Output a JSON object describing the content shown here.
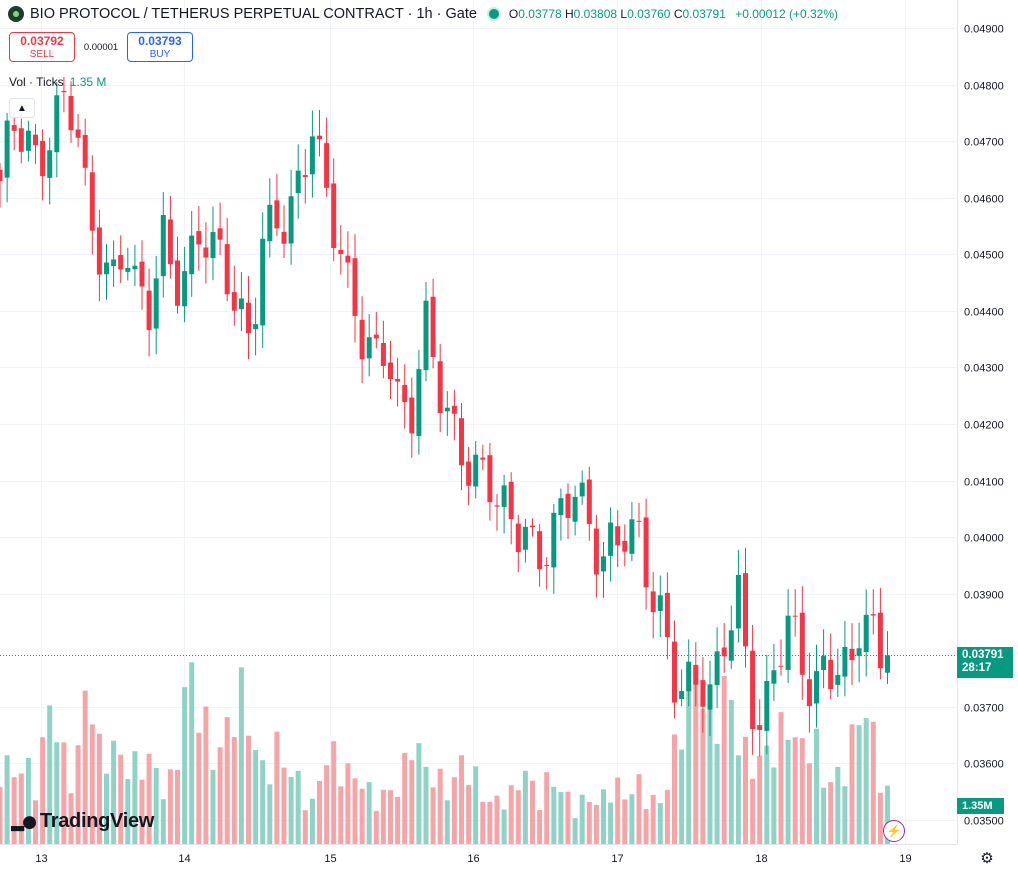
{
  "header": {
    "title": "BIO PROTOCOL / TETHERUS PERPETUAL CONTRACT · 1h · Gate",
    "ohlc": {
      "o_label": "O",
      "o": "0.03778",
      "h_label": "H",
      "h": "0.03808",
      "l_label": "L",
      "l": "0.03760",
      "c_label": "C",
      "c": "0.03791",
      "change": "+0.00012 (+0.32%)"
    }
  },
  "trade": {
    "sell_price": "0.03792",
    "sell_label": "SELL",
    "spread": "0.00001",
    "buy_price": "0.03793",
    "buy_label": "BUY"
  },
  "volume_legend": {
    "label": "Vol · Ticks",
    "value": "1.35 M"
  },
  "last_price_tag": {
    "price": "0.03791",
    "countdown": "28:17"
  },
  "volume_tag": "1.35M",
  "branding": {
    "logo_text": "TradingView"
  },
  "icons": {
    "symbol": "bio-protocol-logo-icon",
    "status": "market-open-dot-icon",
    "collapse": "chevron-up-icon",
    "logo": "tradingview-logo-icon",
    "bolt": "lightning-icon",
    "settings": "gear-icon"
  },
  "colors": {
    "up": "#089981",
    "down": "#f23645",
    "vol_up": "#8fd3c6",
    "vol_down": "#f5a5a8",
    "grid": "#f0f3fa"
  },
  "chart_data": {
    "type": "candlestick",
    "timeframe": "1h",
    "y_ticks": [
      "0.04900",
      "0.04800",
      "0.04700",
      "0.04600",
      "0.04500",
      "0.04400",
      "0.04300",
      "0.04200",
      "0.04100",
      "0.04000",
      "0.03900",
      "0.03700",
      "0.03600",
      "0.03500"
    ],
    "x_ticks": [
      "13",
      "14",
      "15",
      "16",
      "17",
      "18",
      "19"
    ],
    "ylim": [
      0.03458,
      0.0495
    ],
    "last_price": 0.03791,
    "candle_close_anchors": [
      0.046,
      0.047,
      0.0472,
      0.0468,
      0.0474,
      0.0476,
      0.0472,
      0.0455,
      0.0452,
      0.0448,
      0.0455,
      0.044,
      0.0437,
      0.0452,
      0.0448,
      0.045,
      0.0455,
      0.0448,
      0.0445,
      0.044,
      0.0438,
      0.0455,
      0.0455,
      0.0452,
      0.046,
      0.0475,
      0.0465,
      0.0455,
      0.044,
      0.0432,
      0.043,
      0.0437,
      0.0425,
      0.0423,
      0.0435,
      0.0425,
      0.042,
      0.0418,
      0.0414,
      0.041,
      0.0402,
      0.04,
      0.0403,
      0.0399,
      0.0402,
      0.0402,
      0.0406,
      0.0401,
      0.0399,
      0.0402,
      0.0402,
      0.0397,
      0.0388,
      0.0385,
      0.0378,
      0.0376,
      0.0374,
      0.0368,
      0.038,
      0.0393,
      0.0375,
      0.0368,
      0.0375,
      0.0382,
      0.0378,
      0.0375,
      0.038,
      0.0378,
      0.0372,
      0.0385,
      0.0381,
      0.0379
    ],
    "volume_anchors": [
      1.6,
      1.2,
      1.4,
      1.1,
      2.5,
      1.6,
      1.1,
      3.0,
      1.6,
      1.7,
      1.4,
      1.4,
      1.5,
      1.0,
      1.2,
      3.1,
      2.6,
      1.5,
      1.8,
      3.0,
      2.0,
      1.3,
      1.8,
      1.3,
      1.1,
      0.7,
      1.5,
      1.6,
      1.2,
      1.1,
      0.8,
      0.9,
      1.0,
      2.0,
      1.3,
      1.2,
      0.9,
      1.5,
      1.2,
      0.7,
      0.8,
      0.9,
      1.3,
      0.8,
      1.2,
      0.9,
      0.7,
      0.8,
      0.7,
      1.2,
      0.8,
      1.1,
      0.8,
      0.7,
      1.7,
      2.8,
      3.1,
      2.0,
      2.8,
      2.0,
      1.4,
      1.5,
      1.8,
      2.2,
      1.6,
      2.1,
      1.0,
      1.2,
      1.7,
      2.5,
      1.8,
      0.9
    ],
    "volume_ylim": [
      0,
      4.0
    ]
  }
}
